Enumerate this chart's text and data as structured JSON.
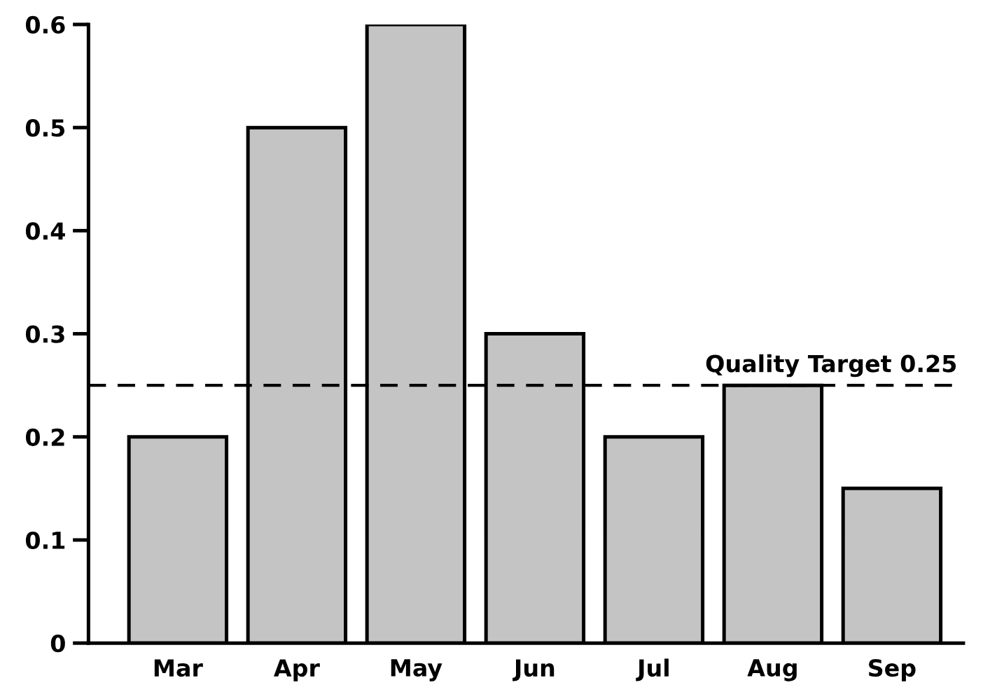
{
  "chart_data": {
    "type": "bar",
    "categories": [
      "Mar",
      "Apr",
      "May",
      "Jun",
      "Jul",
      "Aug",
      "Sep"
    ],
    "values": [
      0.2,
      0.5,
      0.6,
      0.3,
      0.2,
      0.25,
      0.15
    ],
    "color": "#c4c4c4",
    "ylim": [
      0,
      0.6
    ],
    "yticks": [
      0,
      0.1,
      0.2,
      0.3,
      0.4,
      0.5,
      0.6
    ],
    "ref_lines": [
      {
        "axis": "y",
        "value": 0.25,
        "label": "Quality Target 0.25",
        "color": "#000000",
        "line_style": "dashed"
      }
    ],
    "grid": false,
    "legend": false
  }
}
